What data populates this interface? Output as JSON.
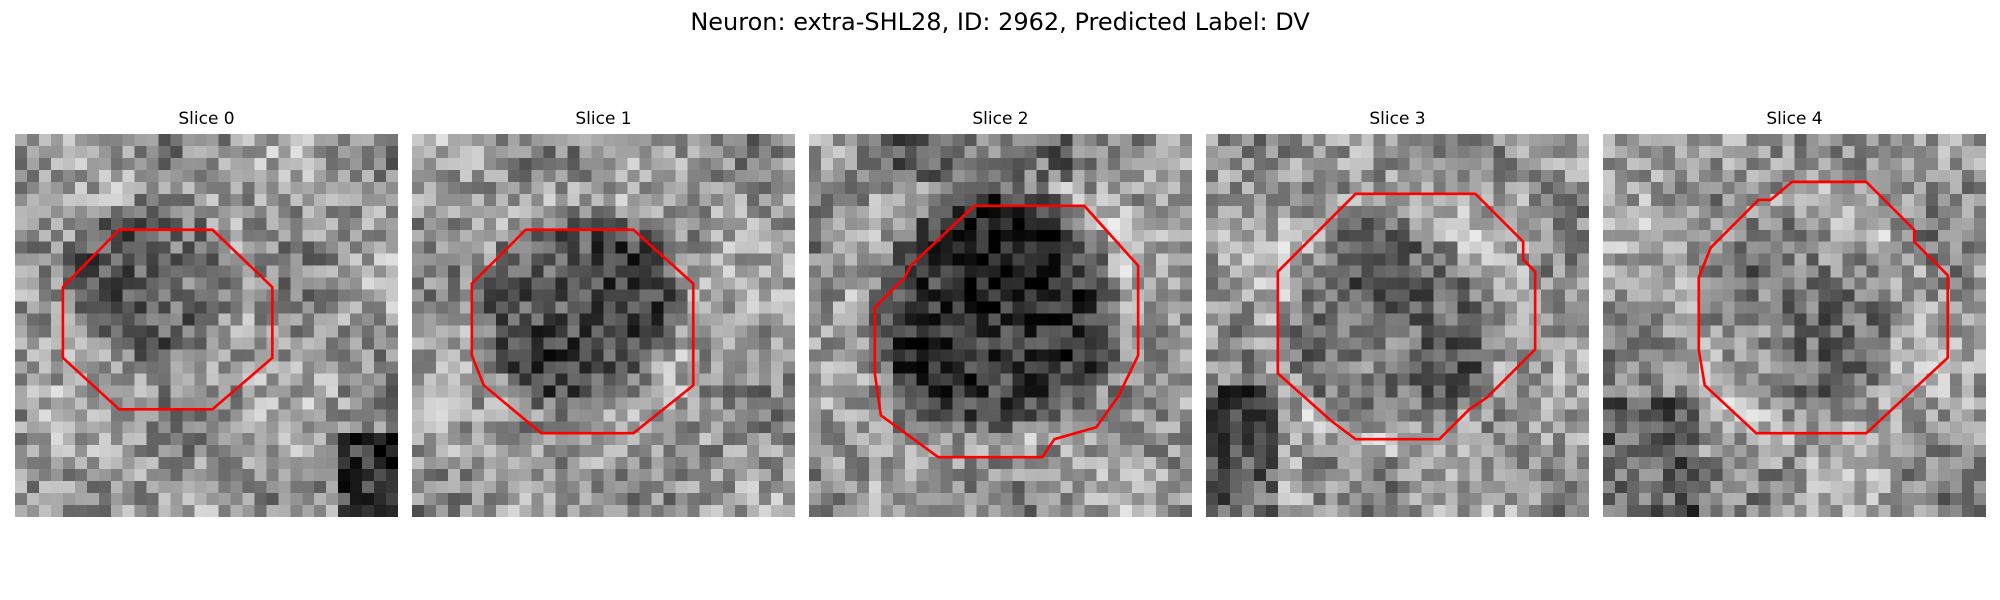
{
  "figure": {
    "title": "Neuron: extra-SHL28, ID: 2962, Predicted Label: DV"
  },
  "contour_color": "#ff0000",
  "image_colormap": "gray",
  "panels": [
    {
      "label": "Slice 0",
      "cell": {
        "tone": 0.78,
        "visibility": 0.55,
        "ring": 0.25
      }
    },
    {
      "label": "Slice 1",
      "cell": {
        "tone": 0.8,
        "visibility": 0.7,
        "ring": 0.3
      }
    },
    {
      "label": "Slice 2",
      "cell": {
        "tone": 0.92,
        "visibility": 0.9,
        "ring": 0.35
      }
    },
    {
      "label": "Slice 3",
      "cell": {
        "tone": 0.45,
        "visibility": 0.5,
        "ring": 0.55
      }
    },
    {
      "label": "Slice 4",
      "cell": {
        "tone": 0.3,
        "visibility": 0.35,
        "ring": 0.4
      }
    }
  ]
}
